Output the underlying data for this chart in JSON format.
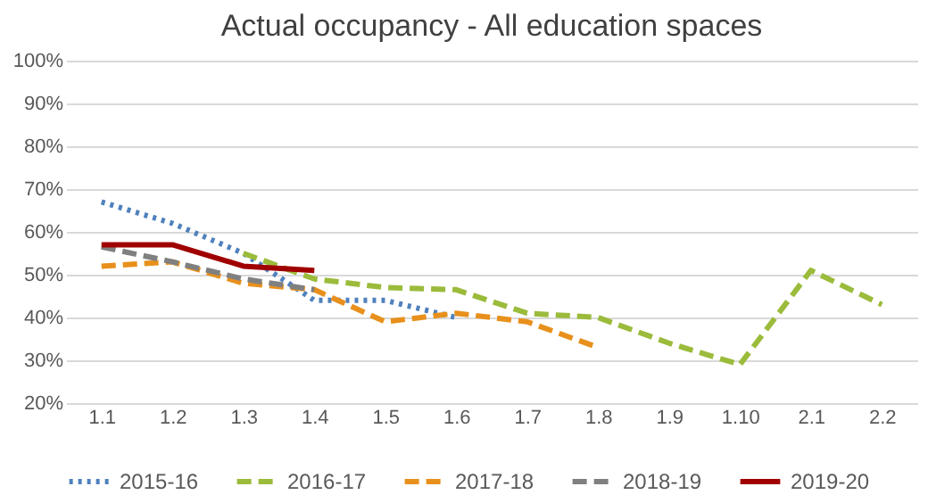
{
  "chart_data": {
    "type": "line",
    "title": "Actual occupancy - All education spaces",
    "categories": [
      "1.1",
      "1.2",
      "1.3",
      "1.4",
      "1.5",
      "1.6",
      "1.7",
      "1.8",
      "1.9",
      "1.10",
      "2.1",
      "2.2"
    ],
    "series": [
      {
        "name": "2015-16",
        "color": "#4f81bd",
        "line_style": "dotted",
        "values": [
          67,
          62,
          55,
          44,
          44,
          40,
          null,
          null,
          null,
          null,
          null,
          null
        ]
      },
      {
        "name": "2016-17",
        "color": "#9bbb3b",
        "line_style": "dashed",
        "values": [
          null,
          null,
          55,
          49,
          47,
          46.5,
          41,
          40,
          34,
          29,
          51,
          43
        ]
      },
      {
        "name": "2017-18",
        "color": "#e8901c",
        "line_style": "dashed",
        "values": [
          52,
          53,
          48,
          46.5,
          39,
          41,
          39,
          33,
          null,
          null,
          null,
          null
        ]
      },
      {
        "name": "2018-19",
        "color": "#808080",
        "line_style": "dashed",
        "values": [
          56.5,
          53,
          49,
          46.5,
          null,
          null,
          null,
          null,
          null,
          null,
          null,
          null
        ]
      },
      {
        "name": "2019-20",
        "color": "#a00000",
        "line_style": "solid",
        "values": [
          57,
          57,
          52,
          51,
          null,
          null,
          null,
          null,
          null,
          null,
          null,
          null
        ]
      }
    ],
    "ylim": [
      20,
      100
    ],
    "yticks": [
      {
        "value": 20,
        "label": "20%"
      },
      {
        "value": 30,
        "label": "30%"
      },
      {
        "value": 40,
        "label": "40%"
      },
      {
        "value": 50,
        "label": "50%"
      },
      {
        "value": 60,
        "label": "60%"
      },
      {
        "value": 70,
        "label": "70%"
      },
      {
        "value": 80,
        "label": "80%"
      },
      {
        "value": 90,
        "label": "90%"
      },
      {
        "value": 100,
        "label": "100%"
      }
    ],
    "grid": "y",
    "legend": "bottom",
    "marker": "none"
  }
}
